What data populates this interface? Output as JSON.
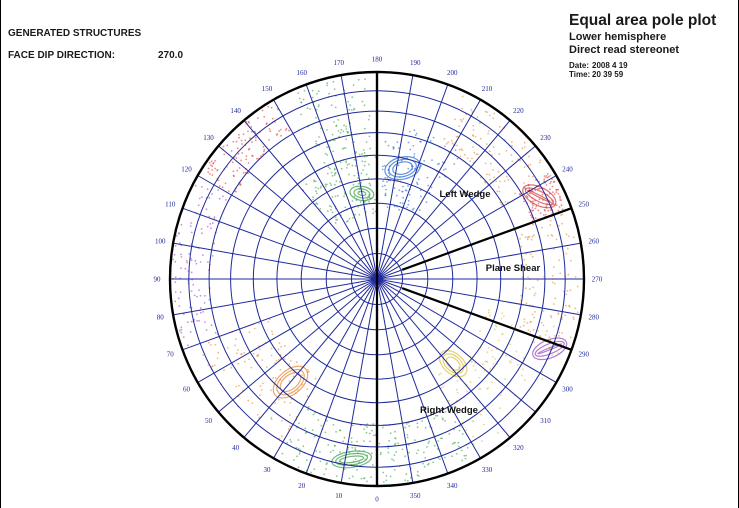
{
  "header": {
    "title": "GENERATED STRUCTURES",
    "face_label": "FACE DIP DIRECTION:",
    "face_value": "270.0"
  },
  "legend": {
    "title": "Equal area pole plot",
    "subtitle1": "Lower hemisphere",
    "subtitle2": "Direct read stereonet",
    "date_label": "Date:",
    "date_value": "2008 4  19",
    "time_label": "Time:",
    "time_value": "20 39  59"
  },
  "stereonet": {
    "projection": "equal-area",
    "hemisphere": "lower",
    "azimuth_labels": [
      0,
      10,
      20,
      30,
      40,
      50,
      60,
      70,
      80,
      90,
      100,
      110,
      120,
      130,
      140,
      150,
      160,
      170,
      180,
      190,
      200,
      210,
      220,
      230,
      240,
      250,
      260,
      270,
      280,
      290,
      300,
      310,
      320,
      330,
      340,
      350
    ],
    "radial_line_step_deg": 10,
    "dip_circle_step_deg": 10,
    "boundary_azimuths": [
      180,
      250,
      290,
      0
    ],
    "regions": [
      {
        "label": "Left Wedge"
      },
      {
        "label": "Plane Shear"
      },
      {
        "label": "Right Wedge"
      }
    ],
    "colors": {
      "grid": "#1f2a9a",
      "boundary": "#000000",
      "green": "#3fa34d",
      "red": "#d94040",
      "blue": "#2f6fd0",
      "orange": "#e48a3a",
      "purple": "#9a4fc4",
      "yellow": "#d8c040"
    }
  }
}
